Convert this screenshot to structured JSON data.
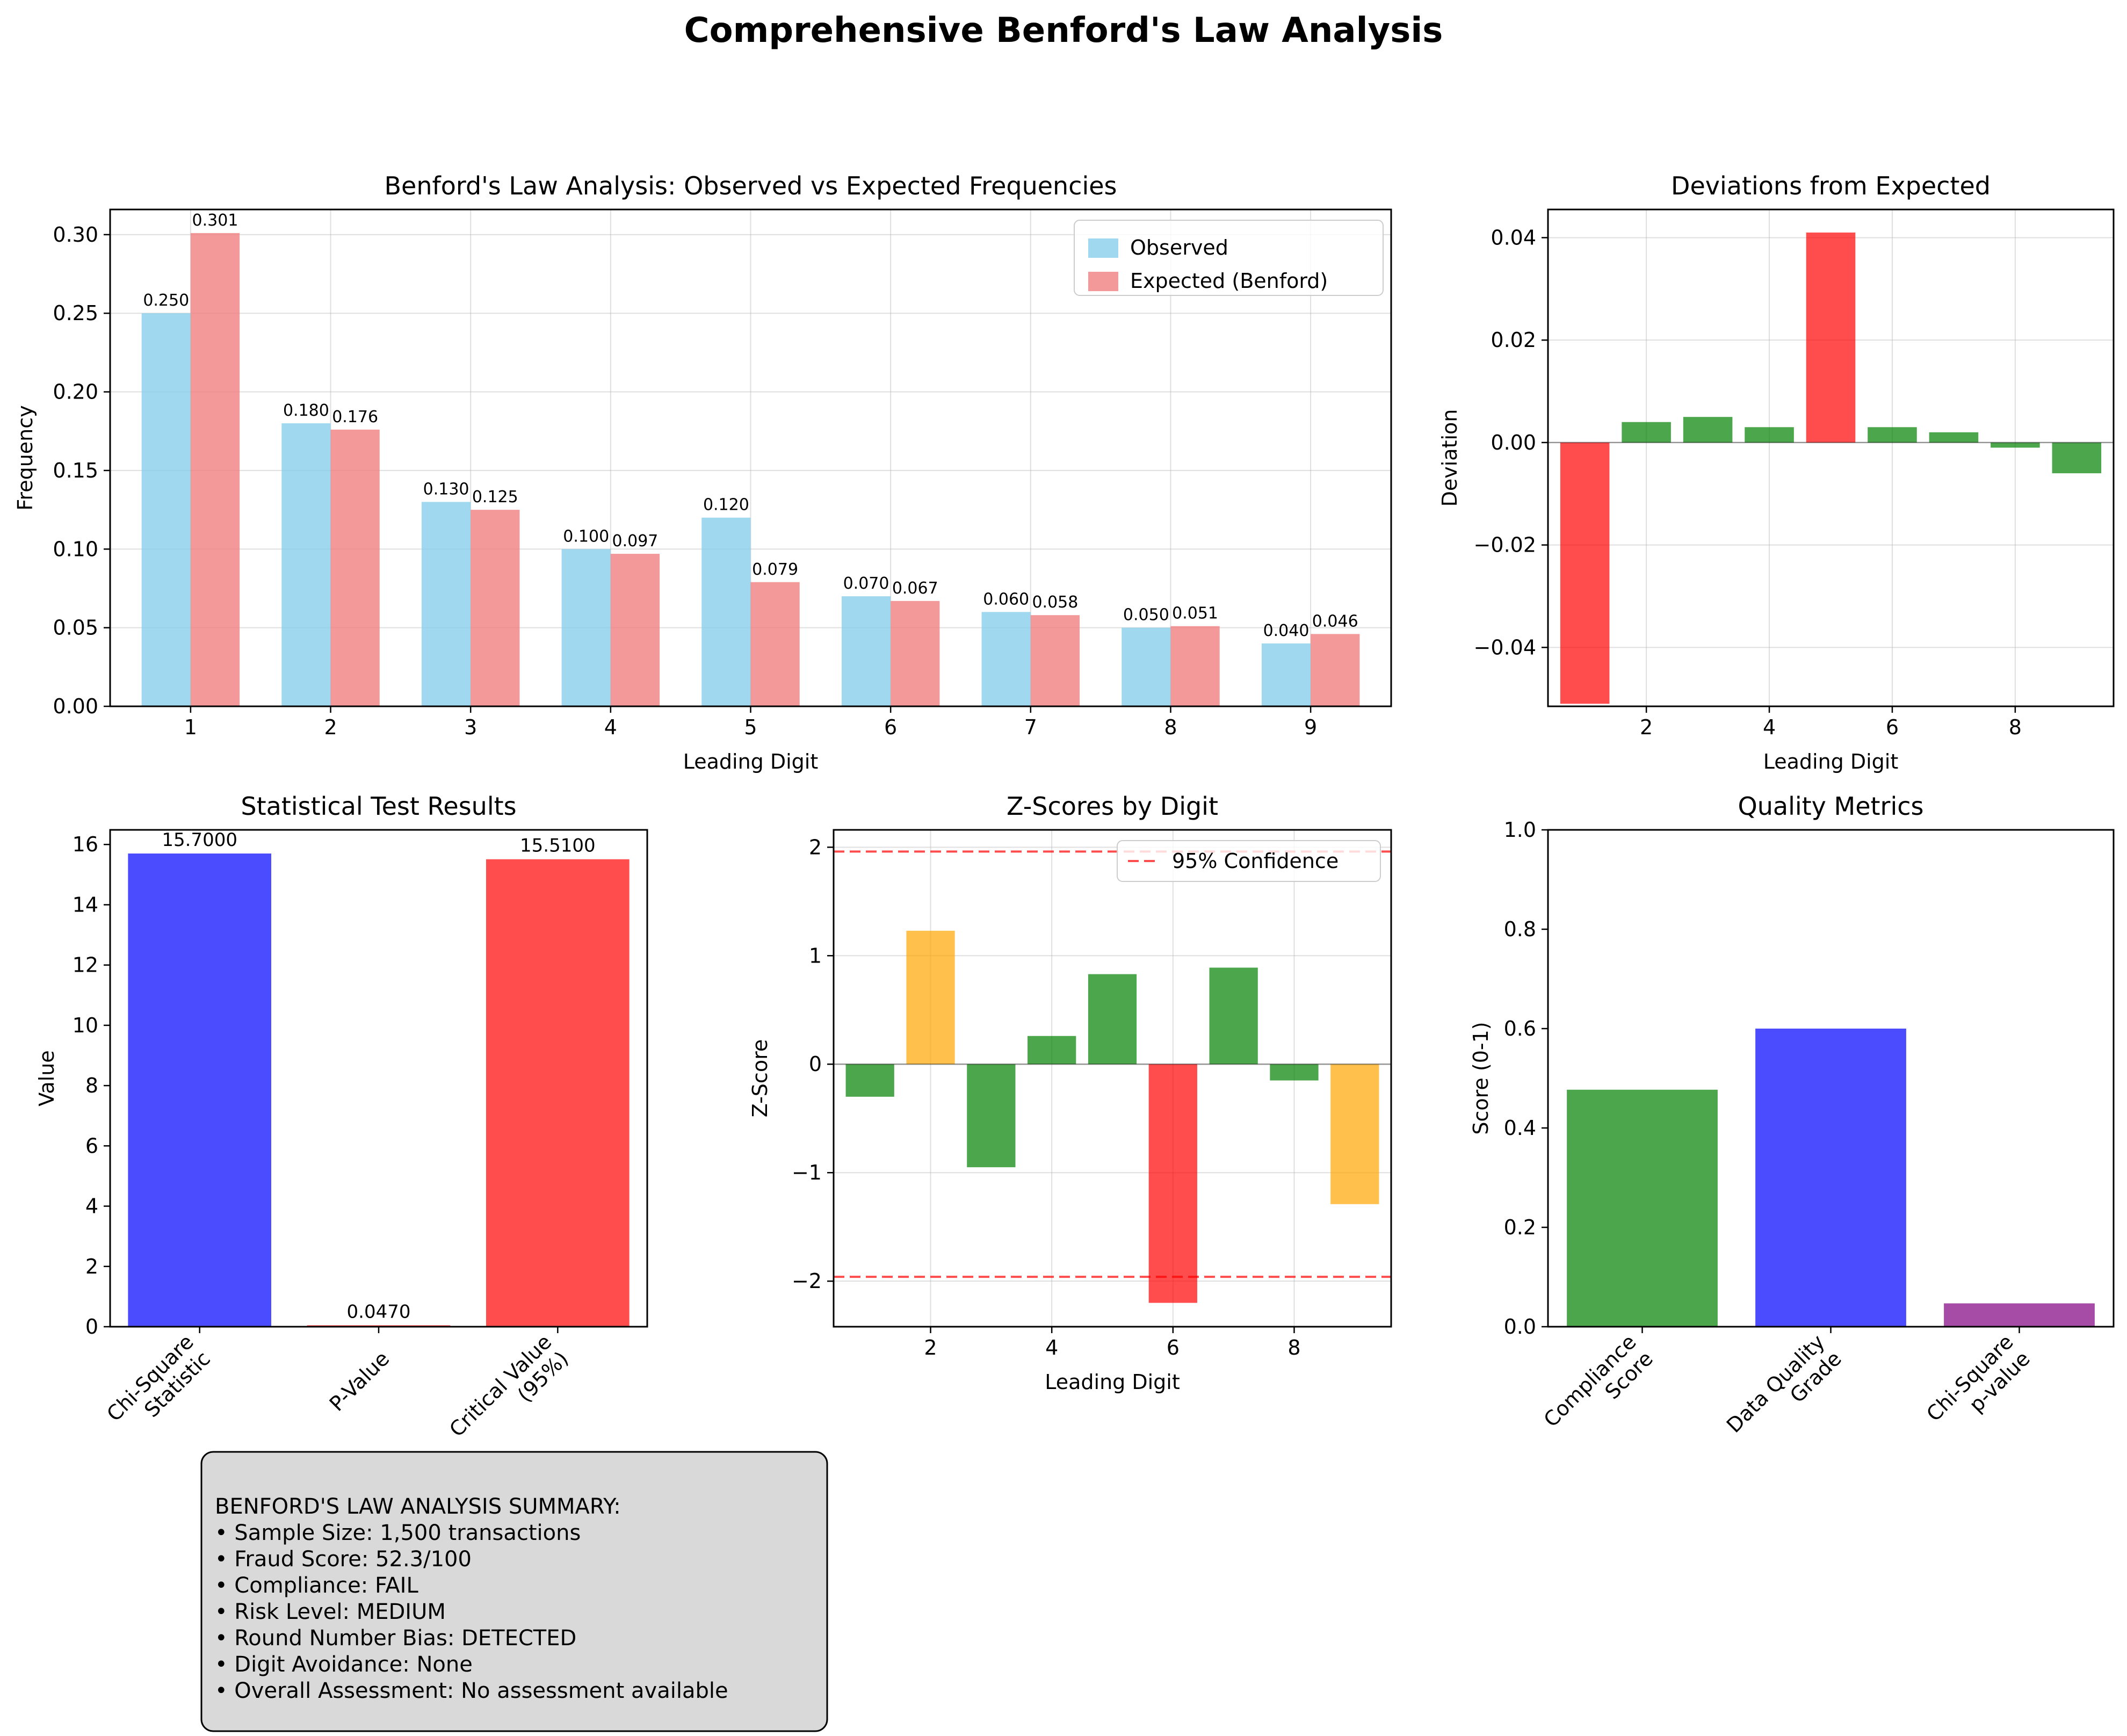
{
  "figure_title": "Comprehensive Benford's Law Analysis",
  "colors": {
    "observed": "#87CEEB",
    "expected": "#F08080",
    "red": "#FF0000",
    "green": "#008000",
    "orange": "#FFA500",
    "blue": "#0000FF",
    "purple": "#800080",
    "summary_bg": "#D9D9D9"
  },
  "chart_data": [
    {
      "id": "benford",
      "type": "bar",
      "title": "Benford's Law Analysis: Observed vs Expected Frequencies",
      "xlabel": "Leading Digit",
      "ylabel": "Frequency",
      "categories": [
        "1",
        "2",
        "3",
        "4",
        "5",
        "6",
        "7",
        "8",
        "9"
      ],
      "ylim": [
        0,
        0.316
      ],
      "yticks": [
        "0.00",
        "0.05",
        "0.10",
        "0.15",
        "0.20",
        "0.25",
        "0.30"
      ],
      "grid": true,
      "legend": "top-right",
      "series": [
        {
          "name": "Observed",
          "values": [
            0.25,
            0.18,
            0.13,
            0.1,
            0.12,
            0.07,
            0.06,
            0.05,
            0.04
          ],
          "labels": [
            "0.250",
            "0.180",
            "0.130",
            "0.100",
            "0.120",
            "0.070",
            "0.060",
            "0.050",
            "0.040"
          ]
        },
        {
          "name": "Expected (Benford)",
          "values": [
            0.301,
            0.176,
            0.125,
            0.097,
            0.079,
            0.067,
            0.058,
            0.051,
            0.046
          ],
          "labels": [
            "0.301",
            "0.176",
            "0.125",
            "0.097",
            "0.079",
            "0.067",
            "0.058",
            "0.051",
            "0.046"
          ]
        }
      ]
    },
    {
      "id": "deviations",
      "type": "bar",
      "title": "Deviations from Expected",
      "xlabel": "Leading Digit",
      "ylabel": "Deviation",
      "x": [
        1,
        2,
        3,
        4,
        5,
        6,
        7,
        8,
        9
      ],
      "values": [
        -0.051,
        0.004,
        0.005,
        0.003,
        0.041,
        0.003,
        0.002,
        -0.001,
        -0.006
      ],
      "bar_colors": [
        "red",
        "green",
        "green",
        "green",
        "red",
        "green",
        "green",
        "green",
        "green"
      ],
      "xlim": [
        0.4,
        9.6
      ],
      "ylim": [
        -0.0515,
        0.0455
      ],
      "xticks": [
        "2",
        "4",
        "6",
        "8"
      ],
      "yticks": [
        "−0.04",
        "−0.02",
        "0.00",
        "0.02",
        "0.04"
      ],
      "grid": true
    },
    {
      "id": "stats",
      "type": "bar",
      "title": "Statistical Test Results",
      "ylabel": "Value",
      "categories": [
        "Chi-Square\nStatistic",
        "P-Value",
        "Critical Value\n(95%)"
      ],
      "values": [
        15.7,
        0.047,
        15.51
      ],
      "labels": [
        "15.7000",
        "0.0470",
        "15.5100"
      ],
      "bar_colors": [
        "blue",
        "red",
        "red"
      ],
      "ylim": [
        0,
        16.485
      ],
      "yticks": [
        "0",
        "2",
        "4",
        "6",
        "8",
        "10",
        "12",
        "14",
        "16"
      ],
      "grid": false
    },
    {
      "id": "zscores",
      "type": "bar",
      "title": "Z-Scores by Digit",
      "xlabel": "Leading Digit",
      "ylabel": "Z-Score",
      "x": [
        1,
        2,
        3,
        4,
        5,
        6,
        7,
        8,
        9
      ],
      "values": [
        -0.3,
        1.23,
        -0.95,
        0.26,
        0.83,
        -2.2,
        0.89,
        -0.15,
        -1.29
      ],
      "bar_colors": [
        "green",
        "orange",
        "green",
        "green",
        "green",
        "red",
        "green",
        "green",
        "orange"
      ],
      "xlim": [
        0.4,
        9.6
      ],
      "ylim": [
        -2.42,
        2.16
      ],
      "xticks": [
        "2",
        "4",
        "6",
        "8"
      ],
      "yticks": [
        "−2",
        "−1",
        "0",
        "1",
        "2"
      ],
      "reference_lines": [
        1.96,
        -1.96
      ],
      "legend_label": "95% Confidence",
      "legend": "top-right",
      "grid": true
    },
    {
      "id": "quality",
      "type": "bar",
      "title": "Quality Metrics",
      "ylabel": "Score (0-1)",
      "categories": [
        "Compliance\nScore",
        "Data Quality\nGrade",
        "Chi-Square\np-value"
      ],
      "values": [
        0.477,
        0.6,
        0.047
      ],
      "bar_colors": [
        "green",
        "blue",
        "purple"
      ],
      "ylim": [
        0,
        1
      ],
      "yticks": [
        "0.0",
        "0.2",
        "0.4",
        "0.6",
        "0.8",
        "1.0"
      ],
      "grid": false
    }
  ],
  "summary": {
    "lines": [
      "BENFORD'S LAW ANALYSIS SUMMARY:",
      "• Sample Size: 1,500 transactions",
      "• Fraud Score: 52.3/100",
      "• Compliance: FAIL",
      "• Risk Level: MEDIUM",
      "• Round Number Bias: DETECTED",
      "• Digit Avoidance: None",
      "• Overall Assessment: No assessment available"
    ]
  }
}
